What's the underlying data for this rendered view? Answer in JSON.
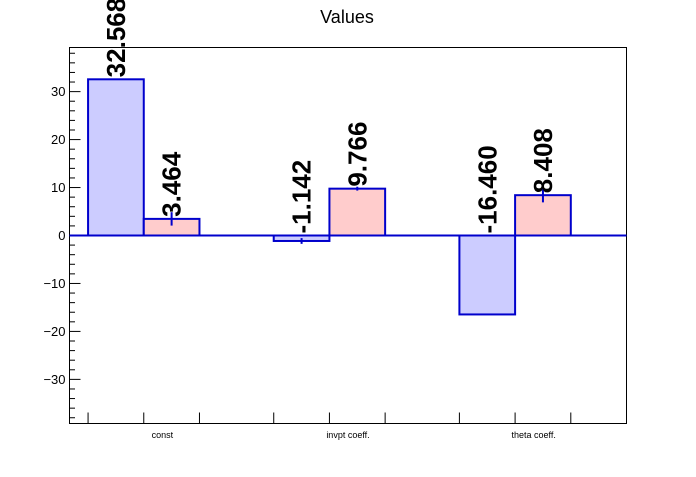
{
  "chart_data": {
    "type": "bar",
    "title": "Values",
    "xlabel": "",
    "ylabel": "",
    "categories": [
      "const",
      "invpt coeff.",
      "theta coeff."
    ],
    "ylim": [
      -39.2,
      39.2
    ],
    "yticks": [
      -30,
      -20,
      -10,
      0,
      10,
      20,
      30
    ],
    "ytick_labels": [
      "−30",
      "−20",
      "−10",
      "0",
      "10",
      "20",
      "30"
    ],
    "grid": false,
    "legend": "none",
    "series": [
      {
        "values": [
          32.568,
          -1.142,
          -16.46
        ],
        "labels": [
          "32.568",
          "-1.142",
          "-16.460"
        ],
        "errors": [
          0,
          0.6,
          0
        ],
        "fill": "#ccccff",
        "stroke": "#0000cc"
      },
      {
        "values": [
          3.464,
          9.766,
          8.408
        ],
        "labels": [
          "3.464",
          "9.766",
          "8.408"
        ],
        "errors": [
          1.4,
          0.4,
          1.5
        ],
        "fill": "#ffcccc",
        "stroke": "#0000cc"
      }
    ]
  }
}
